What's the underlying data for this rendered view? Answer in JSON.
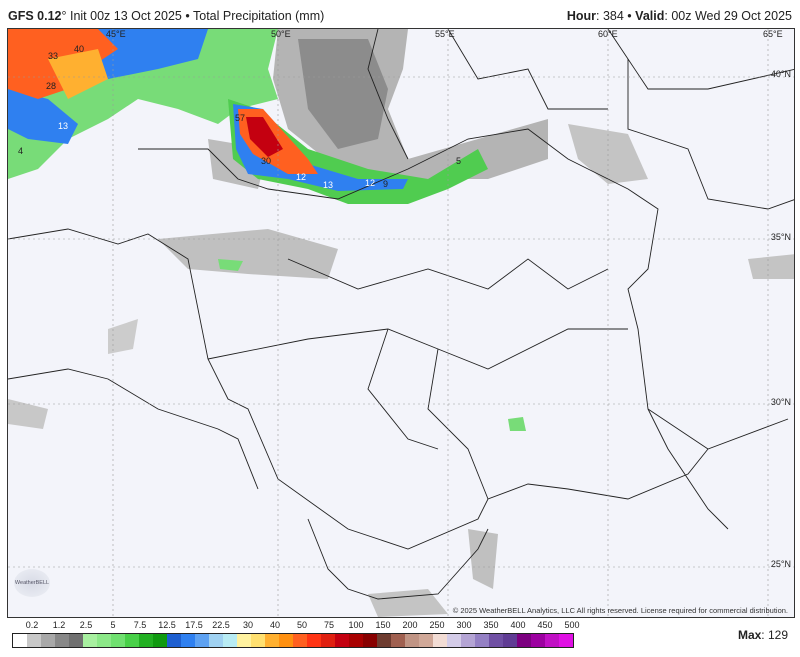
{
  "header": {
    "model": "GFS 0.12",
    "model_suffix": "°",
    "init": "Init 00z 13 Oct 2025",
    "separator": "•",
    "product": "Total Precipitation (mm)",
    "hour_label": "Hour",
    "hour": "384",
    "valid_label": "Valid",
    "valid": "00z Wed 29 Oct 2025"
  },
  "map": {
    "longitude_labels": [
      "45°E",
      "50°E",
      "55°E",
      "60°E",
      "65°E"
    ],
    "latitude_labels": [
      "40°N",
      "35°N",
      "30°N",
      "25°N"
    ],
    "value_labels": [
      "33",
      "40",
      "28",
      "13",
      "4",
      "57",
      "30",
      "12",
      "13",
      "12",
      "9",
      "5"
    ],
    "copyright": "© 2025 WeatherBELL Analytics, LLC All rights reserved. License required for commercial distribution.",
    "logo_text": "WeatherBELL"
  },
  "legend": {
    "labels": [
      "0.2",
      "1.2",
      "2.5",
      "5",
      "7.5",
      "12.5",
      "17.5",
      "22.5",
      "30",
      "40",
      "50",
      "75",
      "100",
      "150",
      "200",
      "250",
      "300",
      "350",
      "400",
      "450",
      "500"
    ],
    "colors": [
      "#ffffff",
      "#c8c8c8",
      "#a8a8a8",
      "#888888",
      "#707070",
      "#a8f0a0",
      "#8ce888",
      "#70e070",
      "#48d048",
      "#22b022",
      "#109a10",
      "#1e5fd0",
      "#2f80f0",
      "#5ea2f2",
      "#a0d2f2",
      "#b8ecf4",
      "#fff2a0",
      "#ffe070",
      "#ffb030",
      "#ff9010",
      "#ff6020",
      "#ff3414",
      "#e02010",
      "#c40010",
      "#a80000",
      "#880000",
      "#6e3c30",
      "#a06050",
      "#c09484",
      "#d0a898",
      "#f2dcd4",
      "#d4cce8",
      "#b4a4d4",
      "#9480c4",
      "#7050a4",
      "#603c94",
      "#7c0080",
      "#9c00a0",
      "#c010c4",
      "#e010e4"
    ],
    "max_label": "Max",
    "max_value": "129"
  }
}
